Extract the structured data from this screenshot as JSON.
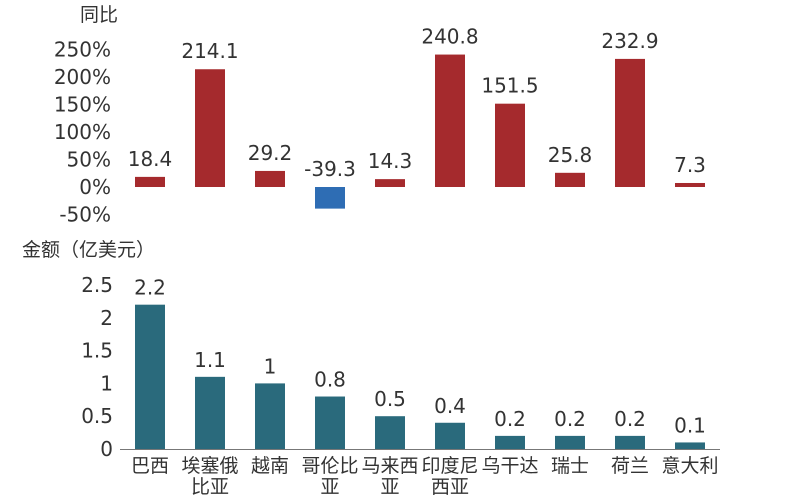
{
  "chart_data": [
    {
      "type": "bar",
      "ylabel": "同比",
      "unit": "%",
      "ylim": [
        -50,
        250
      ],
      "yticks": [
        -50,
        0,
        50,
        100,
        150,
        200,
        250
      ],
      "ytick_labels": [
        "-50%",
        "0%",
        "50%",
        "100%",
        "150%",
        "200%",
        "250%"
      ],
      "categories": [
        "巴西",
        "埃塞俄比亚",
        "越南",
        "哥伦比亚",
        "马来西亚",
        "印度尼西亚",
        "乌干达",
        "瑞士",
        "荷兰",
        "意大利"
      ],
      "values": [
        18.4,
        214.1,
        29.2,
        -39.3,
        14.3,
        240.8,
        151.5,
        25.8,
        232.9,
        7.3
      ],
      "labels": [
        "18.4",
        "214.1",
        "29.2",
        "-39.3",
        "14.3",
        "240.8",
        "151.5",
        "25.8",
        "232.9",
        "7.3"
      ],
      "colors": {
        "positive": "#a52a2d",
        "negative": "#2e6db4"
      }
    },
    {
      "type": "bar",
      "ylabel": "金额（亿美元）",
      "ylim": [
        0,
        2.5
      ],
      "yticks": [
        0,
        0.5,
        1,
        1.5,
        2,
        2.5
      ],
      "ytick_labels": [
        "0",
        "0.5",
        "1",
        "1.5",
        "2",
        "2.5"
      ],
      "categories": [
        "巴西",
        "埃塞俄比亚",
        "越南",
        "哥伦比亚",
        "马来西亚",
        "印度尼西亚",
        "乌干达",
        "瑞士",
        "荷兰",
        "意大利"
      ],
      "category_lines": [
        [
          "巴西"
        ],
        [
          "埃塞俄",
          "比亚"
        ],
        [
          "越南"
        ],
        [
          "哥伦比",
          "亚"
        ],
        [
          "马来西",
          "亚"
        ],
        [
          "印度尼",
          "西亚"
        ],
        [
          "乌干达"
        ],
        [
          "瑞士"
        ],
        [
          "荷兰"
        ],
        [
          "意大利"
        ]
      ],
      "values": [
        2.2,
        1.1,
        1,
        0.8,
        0.5,
        0.4,
        0.2,
        0.2,
        0.2,
        0.1
      ],
      "labels": [
        "2.2",
        "1.1",
        "1",
        "0.8",
        "0.5",
        "0.4",
        "0.2",
        "0.2",
        "0.2",
        "0.1"
      ],
      "colors": {
        "bar": "#2a6a7c",
        "axis": "#777777"
      }
    }
  ]
}
